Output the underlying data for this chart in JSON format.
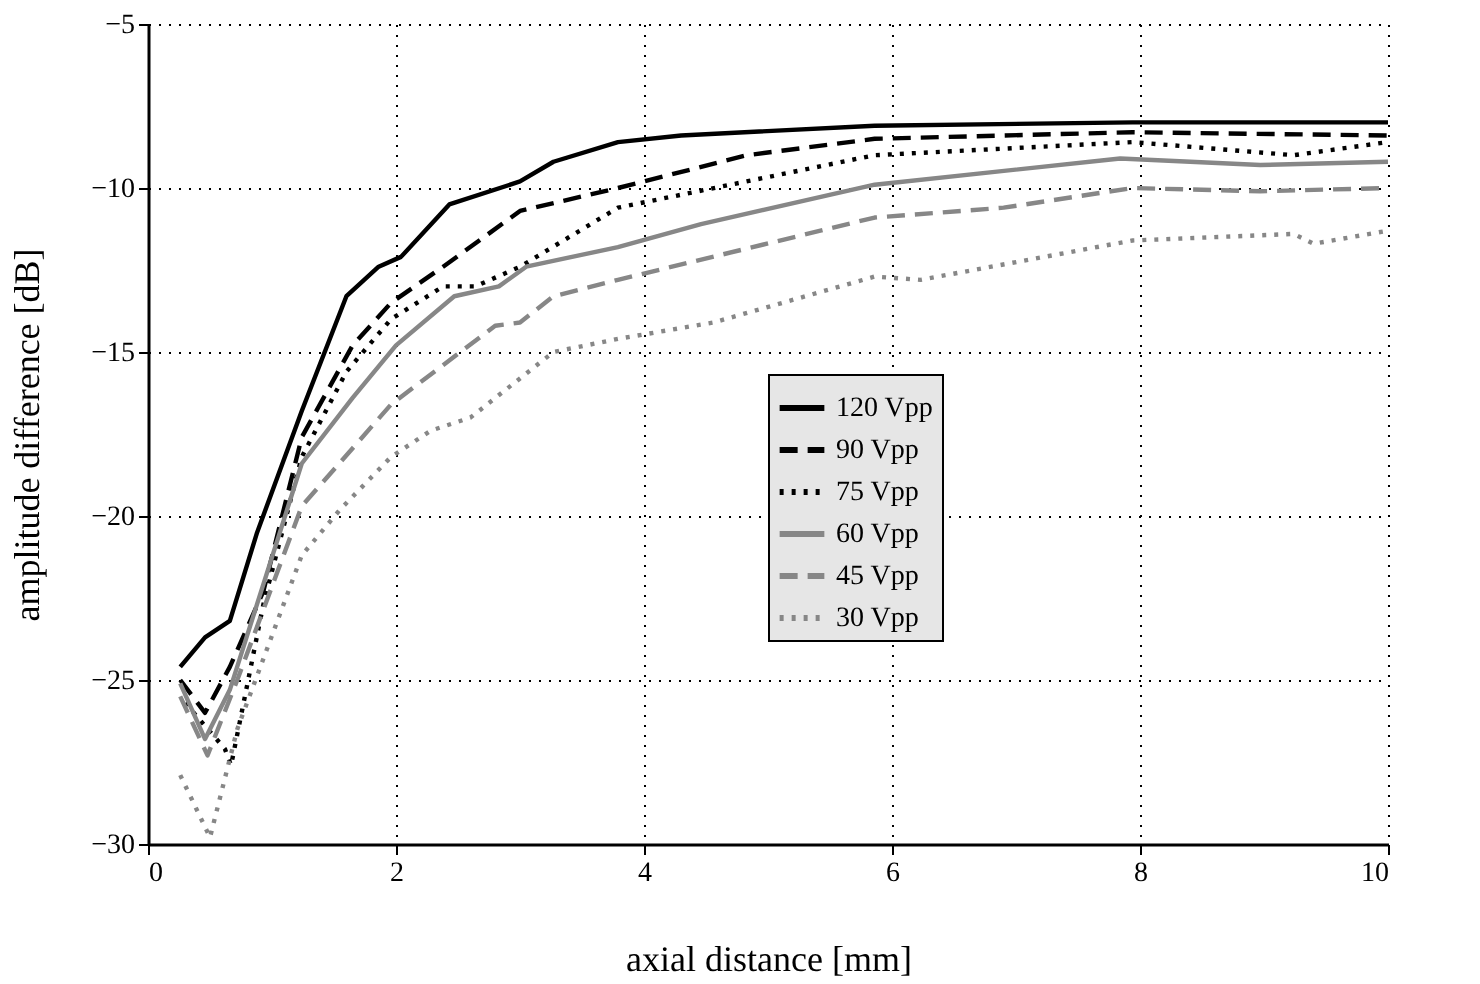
{
  "chart_data": {
    "type": "line",
    "xlabel": "axial distance [mm]",
    "ylabel": "amplitude difference [dB]",
    "xlim": [
      0,
      10
    ],
    "ylim": [
      -30,
      -5
    ],
    "xticks": [
      0,
      2,
      4,
      6,
      8,
      10
    ],
    "yticks": [
      {
        "value": -30,
        "label": "−30"
      },
      {
        "value": -25,
        "label": "−25"
      },
      {
        "value": -20,
        "label": "−20"
      },
      {
        "value": -15,
        "label": "−15"
      },
      {
        "value": -10,
        "label": "−10"
      },
      {
        "value": -5,
        "label": "−5"
      }
    ],
    "grid": true,
    "legend": "center",
    "marker": "none",
    "series": [
      {
        "name": "120 Vpp",
        "color": "#000000",
        "line_style": "solid",
        "x": [
          0.26,
          0.46,
          0.66,
          0.88,
          1.24,
          1.6,
          1.86,
          2.04,
          2.43,
          3.0,
          3.27,
          3.79,
          4.3,
          5.86,
          7.94,
          10
        ],
        "values": [
          -24.6,
          -23.7,
          -23.2,
          -20.5,
          -16.8,
          -13.3,
          -12.4,
          -12.1,
          -10.5,
          -9.8,
          -9.2,
          -8.6,
          -8.4,
          -8.1,
          -8.0,
          -8.0
        ]
      },
      {
        "name": "90 Vpp",
        "color": "#000000",
        "line_style": "dashed",
        "x": [
          0.26,
          0.46,
          0.66,
          0.93,
          1.24,
          1.65,
          1.96,
          2.38,
          3.0,
          3.79,
          4.83,
          5.86,
          7.94,
          10
        ],
        "values": [
          -25.0,
          -26.0,
          -24.6,
          -22.3,
          -17.6,
          -14.8,
          -13.5,
          -12.4,
          -10.7,
          -10.0,
          -9.0,
          -8.5,
          -8.3,
          -8.4
        ]
      },
      {
        "name": "75 Vpp",
        "color": "#000000",
        "line_style": "dotted",
        "x": [
          0.3,
          0.62,
          0.67,
          0.93,
          1.24,
          1.6,
          1.96,
          2.38,
          2.64,
          3.0,
          3.79,
          5.86,
          7.94,
          9.24,
          10
        ],
        "values": [
          -25.7,
          -27.1,
          -27.6,
          -22.7,
          -18.2,
          -15.6,
          -14.0,
          -13.0,
          -13.0,
          -12.4,
          -10.6,
          -9.0,
          -8.6,
          -9.0,
          -8.6
        ]
      },
      {
        "name": "60 Vpp",
        "color": "#878787",
        "line_style": "solid",
        "x": [
          0.26,
          0.46,
          0.66,
          1.24,
          1.65,
          2.0,
          2.47,
          2.83,
          3.05,
          3.79,
          4.46,
          5.86,
          7.84,
          8.97,
          10
        ],
        "values": [
          -25.1,
          -26.8,
          -25.3,
          -18.4,
          -16.4,
          -14.8,
          -13.3,
          -13.0,
          -12.4,
          -11.8,
          -11.1,
          -9.9,
          -9.1,
          -9.3,
          -9.2
        ]
      },
      {
        "name": "45 Vpp",
        "color": "#878787",
        "line_style": "dashed",
        "x": [
          0.26,
          0.48,
          0.72,
          1.24,
          1.96,
          2.8,
          3.0,
          3.27,
          3.79,
          5.86,
          6.9,
          7.94,
          8.97,
          10
        ],
        "values": [
          -25.5,
          -27.3,
          -25.0,
          -19.7,
          -16.6,
          -14.2,
          -14.1,
          -13.3,
          -12.8,
          -10.9,
          -10.6,
          -10.0,
          -10.1,
          -10.0
        ]
      },
      {
        "name": "30 Vpp",
        "color": "#878787",
        "line_style": "dotted",
        "x": [
          0.26,
          0.5,
          0.72,
          1.24,
          1.55,
          1.96,
          2.28,
          2.6,
          3.27,
          3.79,
          4.56,
          5.86,
          6.23,
          7.94,
          9.24,
          9.4,
          10
        ],
        "values": [
          -27.9,
          -29.8,
          -26.5,
          -21.2,
          -19.8,
          -18.2,
          -17.4,
          -17.0,
          -15.0,
          -14.6,
          -14.1,
          -12.7,
          -12.8,
          -11.6,
          -11.4,
          -11.7,
          -11.3
        ]
      }
    ]
  }
}
